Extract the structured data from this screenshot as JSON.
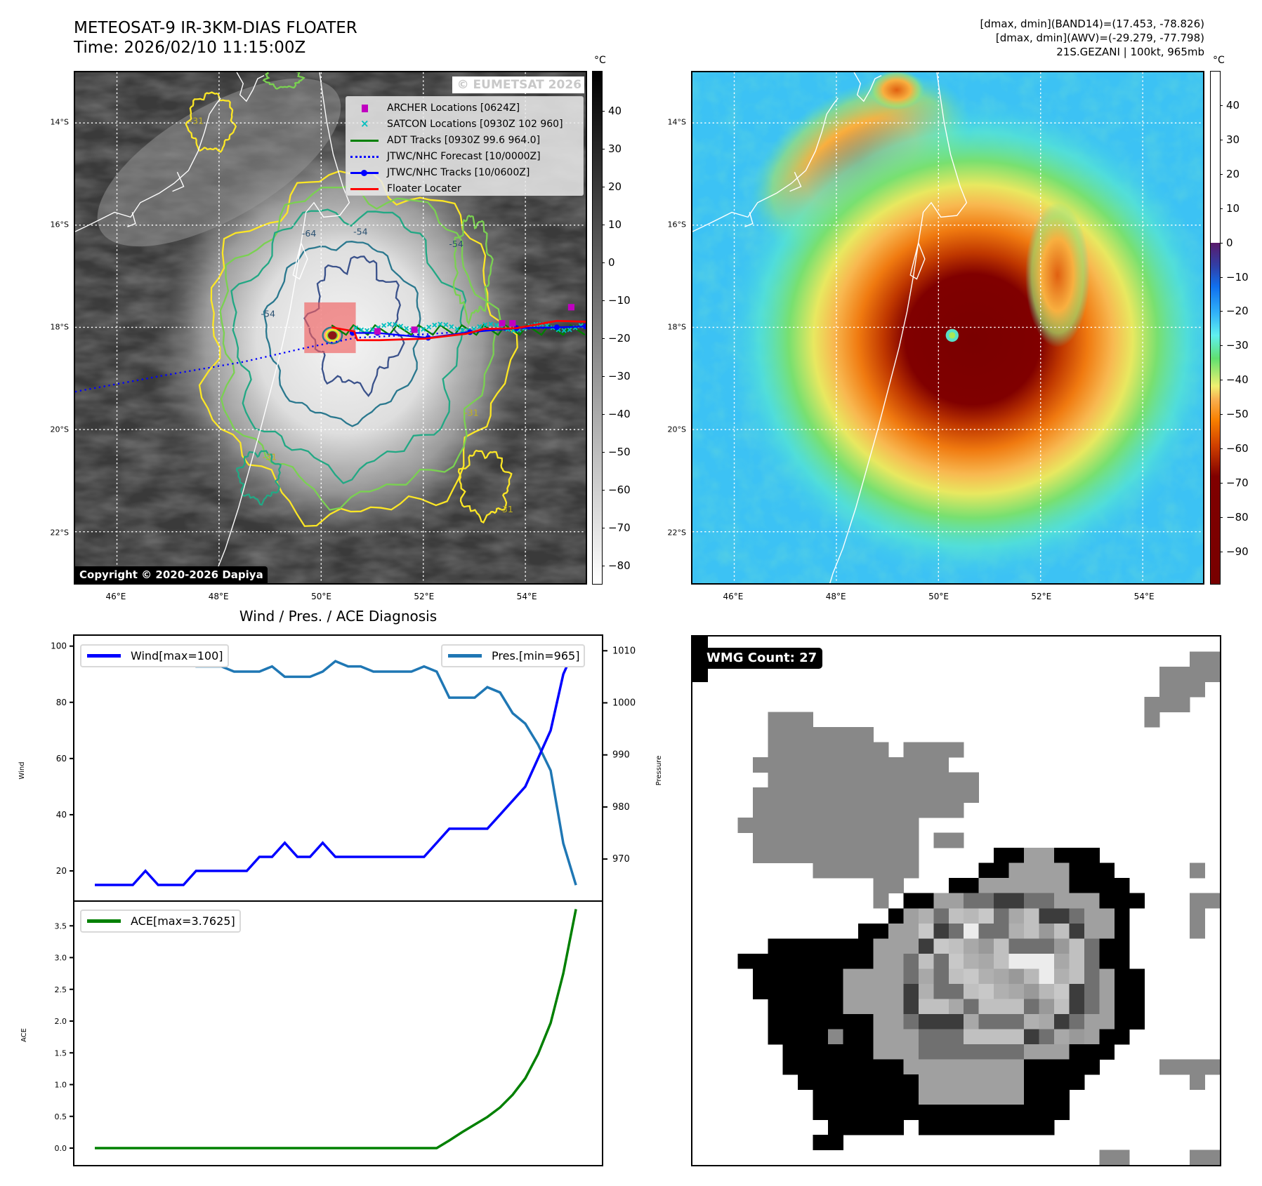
{
  "header": {
    "title": "METEOSAT-9 IR-3KM-DIAS FLOATER",
    "time": "Time: 2026/02/10 11:15:00Z",
    "stats": [
      "[dmax, dmin](BAND14)=(17.453, -78.826)",
      "[dmax, dmin](AWV)=(-29.279, -77.798)",
      "21S.GEZANI | 100kt, 965mb"
    ]
  },
  "maps": {
    "lat_labels": [
      "14°S",
      "16°S",
      "18°S",
      "20°S",
      "22°S"
    ],
    "lon_labels": [
      "46°E",
      "48°E",
      "50°E",
      "52°E",
      "54°E"
    ],
    "unit": "°C",
    "ir_colorbar_ticks": [
      "40",
      "30",
      "20",
      "10",
      "0",
      "−10",
      "−20",
      "−30",
      "−40",
      "−50",
      "−60",
      "−70",
      "−80"
    ],
    "awv_colorbar_ticks": [
      "40",
      "30",
      "20",
      "10",
      "0",
      "−10",
      "−20",
      "−30",
      "−40",
      "−50",
      "−60",
      "−70",
      "−80",
      "−90"
    ],
    "watermark": "© EUMETSAT 2026",
    "copyright": "Copyright © 2020-2026 Dapiya",
    "contour_labels": [
      "-64",
      "-54",
      "-54",
      "-54",
      "-31",
      "-31",
      "-31",
      "-31"
    ],
    "legend": [
      {
        "label": "ARCHER Locations [0624Z]",
        "icon": "square-marker",
        "color": "#c000c0"
      },
      {
        "label": "SATCON Locations [0930Z 102 960]",
        "icon": "x-marker",
        "color": "#00bfbf"
      },
      {
        "label": "ADT Tracks [0930Z 99.6 964.0]",
        "icon": "solid-line",
        "color": "#008000"
      },
      {
        "label": "JTWC/NHC Forecast [10/0000Z]",
        "icon": "dotted-line",
        "color": "#0000ff"
      },
      {
        "label": "JTWC/NHC Tracks [10/0600Z]",
        "icon": "line-dot",
        "color": "#0000ff"
      },
      {
        "label": "Floater Locater",
        "icon": "solid-line",
        "color": "#ff0000"
      }
    ]
  },
  "chart_data": [
    {
      "type": "line",
      "title": "Wind / Pres. / ACE Diagnosis",
      "ylabel": "Wind",
      "ylabel_right": "Pressure",
      "ylim": [
        9.3,
        103.9
      ],
      "ylim_right": [
        961.9,
        1013.0
      ],
      "yticks": [
        20,
        40,
        60,
        80,
        100
      ],
      "yticks_right": [
        970,
        980,
        990,
        1000,
        1010
      ],
      "series": [
        {
          "name": "Wind[max=100]",
          "axis": "left",
          "color": "#0000ff",
          "values": [
            15,
            15,
            15,
            15,
            20,
            15,
            15,
            15,
            20,
            20,
            20,
            20,
            20,
            25,
            25,
            30,
            25,
            25,
            30,
            25,
            25,
            25,
            25,
            25,
            25,
            25,
            25,
            30,
            35,
            35,
            35,
            35,
            40,
            45,
            50,
            60,
            70,
            90,
            100
          ]
        },
        {
          "name": "Pres.[min=965]",
          "axis": "right",
          "color": "#1f77b4",
          "values": [
            1009,
            1009,
            1011,
            1011,
            1011,
            1011,
            1011,
            1009,
            1007,
            1007,
            1007,
            1006,
            1006,
            1006,
            1007,
            1005,
            1005,
            1005,
            1006,
            1008,
            1007,
            1007,
            1006,
            1006,
            1006,
            1006,
            1007,
            1006,
            1001,
            1001,
            1001,
            1003,
            1002,
            998,
            996,
            992,
            987,
            973,
            965
          ]
        }
      ],
      "legend": [
        "upper-left",
        "upper-right"
      ]
    },
    {
      "type": "line",
      "ylabel": "ACE",
      "ylim": [
        -0.28,
        3.89
      ],
      "yticks": [
        "0.0",
        "0.5",
        "1.0",
        "1.5",
        "2.0",
        "2.5",
        "3.0",
        "3.5"
      ],
      "series": [
        {
          "name": "ACE[max=3.7625]",
          "color": "#008000",
          "values": [
            0,
            0,
            0,
            0,
            0,
            0,
            0,
            0,
            0,
            0,
            0,
            0,
            0,
            0,
            0,
            0,
            0,
            0,
            0,
            0,
            0,
            0,
            0,
            0,
            0,
            0,
            0,
            0,
            0.12,
            0.25,
            0.37,
            0.49,
            0.64,
            0.84,
            1.1,
            1.48,
            1.97,
            2.75,
            3.7625
          ]
        }
      ],
      "legend": [
        "upper-left"
      ]
    }
  ],
  "wmg": {
    "label": "WMG Count: 27"
  }
}
